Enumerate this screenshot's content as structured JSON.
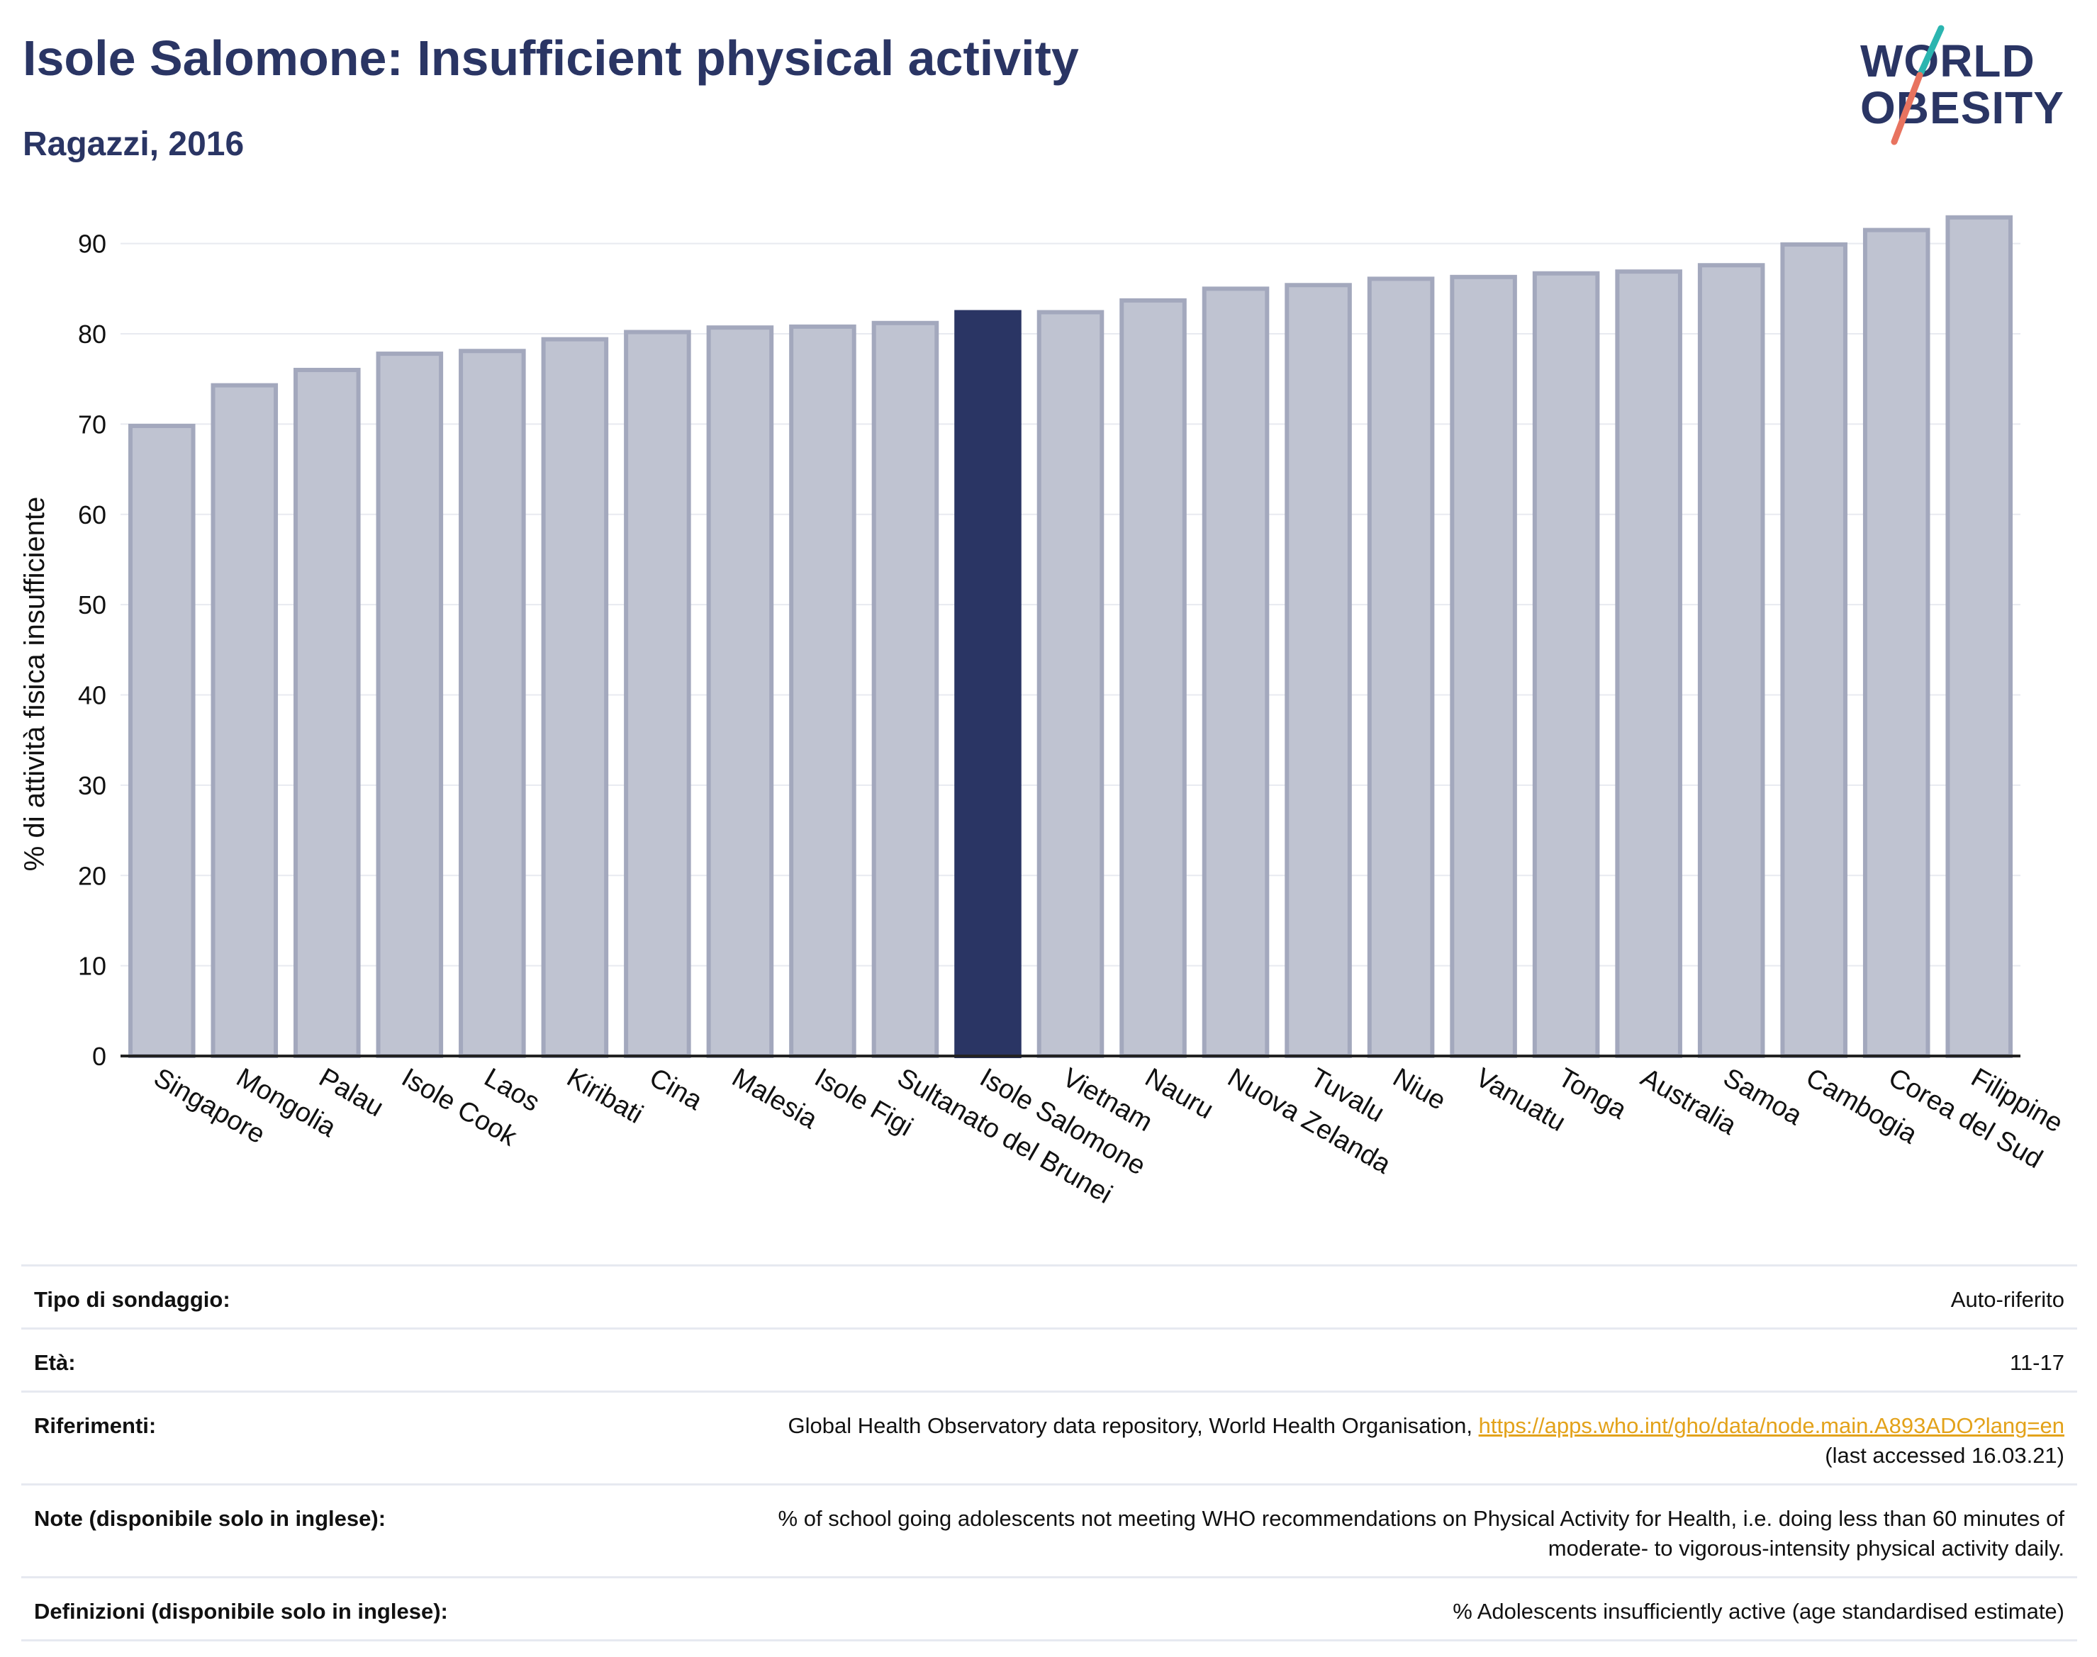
{
  "header": {
    "title": "Isole Salomone: Insufficient physical activity",
    "subtitle": "Ragazzi, 2016",
    "logo_line1": "WORLD",
    "logo_line2": "OBESITY"
  },
  "colors": {
    "title": "#2a3564",
    "bar_default": "#bfc3d1",
    "bar_border": "#a3a8bd",
    "bar_highlight": "#2a3564",
    "link": "#e3a21a",
    "logo_teal": "#2bb5b0",
    "logo_coral": "#e8735f"
  },
  "chart_data": {
    "type": "bar",
    "title": "Isole Salomone: Insufficient physical activity",
    "subtitle": "Ragazzi, 2016",
    "ylabel": "% di attività fisica insufficiente",
    "xlabel": "",
    "ylim": [
      0,
      95
    ],
    "yticks": [
      0,
      10,
      20,
      30,
      40,
      50,
      60,
      70,
      80,
      90
    ],
    "grid": true,
    "highlight": "Isole Salomone",
    "categories": [
      "Singapore",
      "Mongolia",
      "Palau",
      "Isole Cook",
      "Laos",
      "Kiribati",
      "Cina",
      "Malesia",
      "Isole Figi",
      "Sultanato del Brunei",
      "Isole Salomone",
      "Vietnam",
      "Nauru",
      "Nuova Zelanda",
      "Tuvalu",
      "Niue",
      "Vanuatu",
      "Tonga",
      "Australia",
      "Samoa",
      "Cambogia",
      "Corea del Sud",
      "Filippine"
    ],
    "values": [
      69.8,
      74.3,
      76.0,
      77.8,
      78.1,
      79.4,
      80.2,
      80.7,
      80.8,
      81.2,
      82.4,
      82.4,
      83.7,
      85.0,
      85.4,
      86.1,
      86.3,
      86.7,
      86.9,
      87.6,
      89.9,
      91.5,
      92.9
    ]
  },
  "info": {
    "survey_label": "Tipo di sondaggio:",
    "survey_value": "Auto-riferito",
    "age_label": "Età:",
    "age_value": "11-17",
    "refs_label": "Riferimenti:",
    "refs_text": "Global Health Observatory data repository, World Health Organisation, ",
    "refs_link": "https://apps.who.int/gho/data/node.main.A893ADO?lang=en",
    "refs_accessed": "(last accessed 16.03.21)",
    "notes_label": "Note (disponibile solo in inglese):",
    "notes_line1": "% of school going adolescents not meeting WHO recommendations on Physical Activity for Health, i.e. doing less than 60 minutes of",
    "notes_line2": "moderate- to vigorous-intensity physical activity daily.",
    "defs_label": "Definizioni (disponibile solo in inglese):",
    "defs_value": "% Adolescents insufficiently active (age standardised estimate)"
  }
}
